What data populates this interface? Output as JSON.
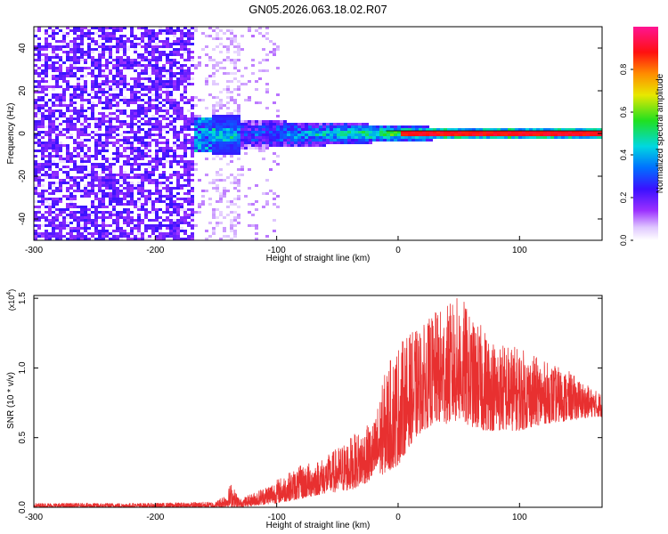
{
  "title": "GN05.2026.063.18.02.R07",
  "colors": {
    "snr_line": "#e83030",
    "colormap": [
      "#ffffff",
      "#d8c8f8",
      "#8a2be2",
      "#3a00ff",
      "#00a0ff",
      "#00e0d0",
      "#20e020",
      "#f0e000",
      "#ff8000",
      "#ff2000",
      "#ff1080",
      "#ff1493"
    ]
  },
  "chart_data": [
    {
      "type": "heatmap",
      "title": "GN05.2026.063.18.02.R07",
      "xlabel": "Height of straight line (km)",
      "ylabel": "Frequency (Hz)",
      "xlim": [
        -300,
        168
      ],
      "ylim": [
        -50,
        50
      ],
      "x_ticks": [
        -300,
        -200,
        -100,
        0,
        100
      ],
      "x_tick_labels": [
        "-300",
        "-200",
        "-100",
        "0",
        "100"
      ],
      "y_ticks": [
        -40,
        -20,
        0,
        20,
        40
      ],
      "y_tick_labels": [
        "-40",
        "-20",
        "0",
        "20",
        "40"
      ],
      "colorbar": {
        "label": "Normalized spectral amplitude",
        "range": [
          0,
          1
        ],
        "ticks": [
          0.0,
          0.2,
          0.4,
          0.6,
          0.8
        ],
        "tick_labels": [
          "0.0",
          "0.2",
          "0.4",
          "0.6",
          "0.8"
        ]
      },
      "regions": [
        {
          "x_range": [
            -300,
            -168
          ],
          "description_level": 0.25,
          "freq_spread": 50
        },
        {
          "x_range": [
            -168,
            -130
          ],
          "description_level": 0.4,
          "freq_spread": 10
        },
        {
          "x_range": [
            -130,
            0
          ],
          "description_level": 0.55,
          "freq_spread": 6
        },
        {
          "x_range": [
            0,
            168
          ],
          "description_level": 0.9,
          "freq_spread": 2
        }
      ]
    },
    {
      "type": "line",
      "xlabel": "Height of straight line (km)",
      "ylabel": "SNR (10 * v/v)",
      "y_multiplier_base": "(x10",
      "y_multiplier_exp": "4",
      "y_multiplier_close": ")",
      "xlim": [
        -300,
        168
      ],
      "ylim": [
        0,
        1.52
      ],
      "x_ticks": [
        -300,
        -200,
        -100,
        0,
        100
      ],
      "x_tick_labels": [
        "-300",
        "-200",
        "-100",
        "0",
        "100"
      ],
      "y_ticks": [
        0.0,
        0.5,
        1.0,
        1.5
      ],
      "y_tick_labels": [
        "0.0",
        "0.5",
        "1.0",
        "1.5"
      ],
      "series": [
        {
          "envelope": {
            "x": [
              -300,
              -250,
              -200,
              -150,
              -140,
              -138,
              -130,
              -120,
              -100,
              -80,
              -60,
              -40,
              -20,
              -10,
              0,
              10,
              20,
              30,
              40,
              50,
              55,
              60,
              70,
              80,
              100,
              120,
              140,
              160,
              168
            ],
            "low": [
              0.0,
              0.0,
              0.0,
              0.0,
              0.0,
              0.0,
              0.0,
              0.01,
              0.03,
              0.06,
              0.1,
              0.12,
              0.2,
              0.25,
              0.3,
              0.45,
              0.55,
              0.6,
              0.6,
              0.62,
              0.6,
              0.58,
              0.55,
              0.55,
              0.55,
              0.6,
              0.62,
              0.65,
              0.65
            ],
            "high": [
              0.03,
              0.03,
              0.03,
              0.04,
              0.12,
              0.18,
              0.06,
              0.1,
              0.2,
              0.3,
              0.36,
              0.5,
              0.62,
              1.0,
              1.18,
              1.25,
              1.3,
              1.4,
              1.45,
              1.52,
              1.48,
              1.35,
              1.3,
              1.2,
              1.15,
              1.05,
              0.98,
              0.85,
              0.82
            ]
          }
        }
      ]
    }
  ]
}
